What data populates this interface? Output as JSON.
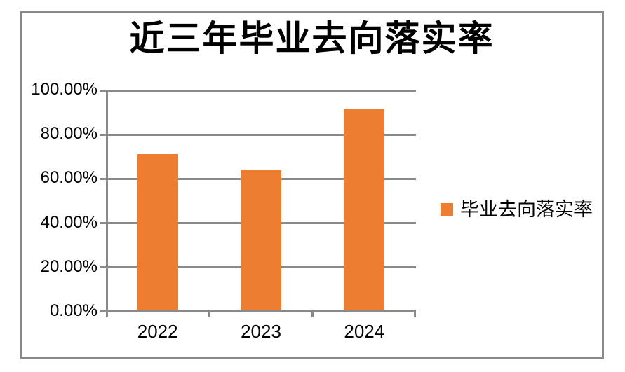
{
  "chart_data": {
    "type": "bar",
    "title": "近三年毕业去向落实率",
    "categories": [
      "2022",
      "2023",
      "2024"
    ],
    "series": [
      {
        "name": "毕业去向落实率",
        "values": [
          71,
          64,
          91
        ]
      }
    ],
    "xlabel": "",
    "ylabel": "",
    "ylim": [
      0,
      100
    ],
    "ytick_labels": [
      "100.00%",
      "80.00%",
      "60.00%",
      "40.00%",
      "20.00%",
      "0.00%"
    ],
    "grid": true,
    "legend_position": "right",
    "bar_color": "#ED7D31",
    "line_color": "#898989",
    "text_color": "#000000",
    "background_color": "#FFFFFF"
  }
}
